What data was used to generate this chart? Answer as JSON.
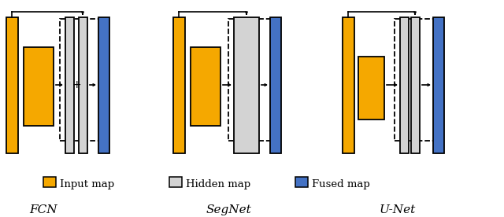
{
  "colors": {
    "input_map": "#F5A800",
    "hidden_map": "#D3D3D3",
    "fused_map": "#4472C4",
    "black": "#000000",
    "white": "#FFFFFF"
  },
  "sections": [
    "FCN",
    "SegNet",
    "U-Net"
  ],
  "legend": [
    "Input map",
    "Hidden map",
    "Fused map"
  ],
  "fig_width": 6.4,
  "fig_height": 2.76
}
